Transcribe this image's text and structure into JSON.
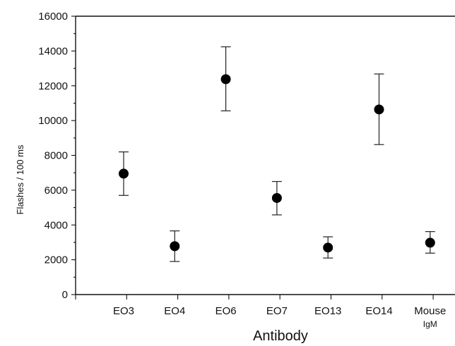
{
  "chart_data": {
    "type": "scatter",
    "title": "",
    "xlabel": "Antibody",
    "ylabel": "Flashes / 100 ms",
    "ylim": [
      0,
      16000
    ],
    "y_ticks": [
      0,
      2000,
      4000,
      6000,
      8000,
      10000,
      12000,
      14000,
      16000
    ],
    "y_tick_labels": [
      "0",
      "2000",
      "4000",
      "6000",
      "8000",
      "10000",
      "12000",
      "14000",
      "16000"
    ],
    "categories": [
      [
        "EO3"
      ],
      [
        "EO4"
      ],
      [
        "EO6"
      ],
      [
        "EO7"
      ],
      [
        "EO13"
      ],
      [
        "EO14"
      ],
      [
        "Mouse",
        "IgM"
      ]
    ],
    "series": [
      {
        "values": [
          6950,
          2780,
          12380,
          5550,
          2700,
          10640,
          2980
        ],
        "error_low": [
          5700,
          1900,
          10560,
          4580,
          2100,
          8620,
          2380
        ],
        "error_high": [
          8200,
          3660,
          14240,
          6500,
          3320,
          12680,
          3620
        ]
      }
    ],
    "grid": false,
    "legend": "none",
    "colors": {
      "marker": "#000000",
      "axis": "#111111",
      "error_bars": "#222222"
    }
  }
}
